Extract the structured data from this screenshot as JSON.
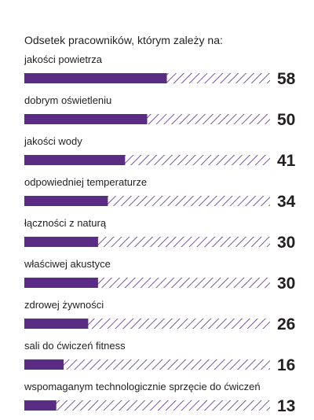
{
  "chart_data": {
    "type": "bar",
    "orientation": "horizontal",
    "title": "Odsetek pracowników, którym zależy na:",
    "categories": [
      "jakości powietrza",
      "dobrym oświetleniu",
      "jakości wody",
      "odpowiedniej temperaturze",
      "łączności z naturą",
      "właściwej akustyce",
      "zdrowej żywności",
      "sali do ćwiczeń fitness",
      "wspomaganym technologicznie sprzęcie do ćwiczeń"
    ],
    "values": [
      58,
      50,
      41,
      34,
      30,
      30,
      26,
      16,
      13
    ],
    "xlim": [
      0,
      100
    ],
    "grid": false,
    "legend": "none",
    "colors": {
      "bar": "#5b2c86",
      "hatch": "#5b2c86",
      "text": "#231f20"
    }
  }
}
